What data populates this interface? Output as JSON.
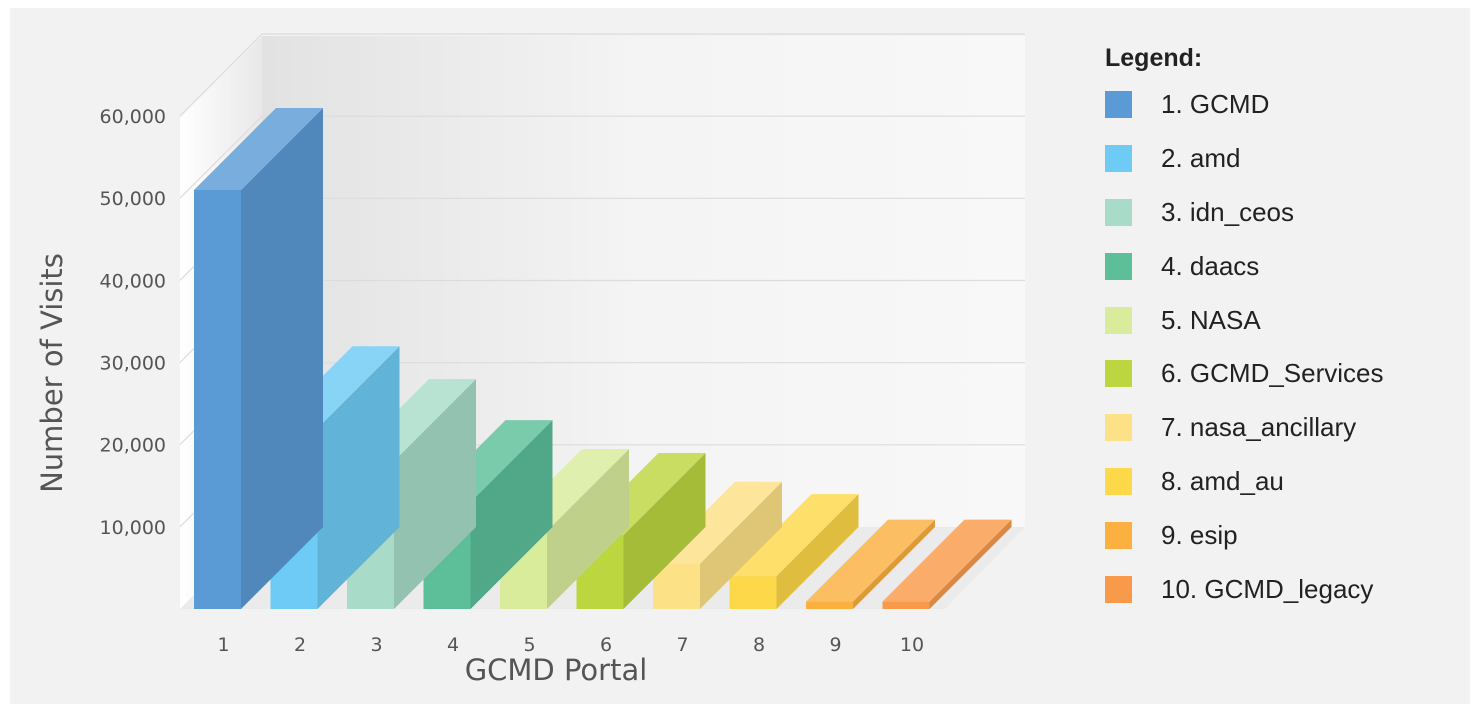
{
  "chart_data": {
    "type": "bar",
    "style": "3d",
    "xlabel": "GCMD Portal",
    "ylabel": "Number of Visits",
    "categories": [
      "1",
      "2",
      "3",
      "4",
      "5",
      "6",
      "7",
      "8",
      "9",
      "10"
    ],
    "values": [
      51000,
      22000,
      18000,
      13000,
      9500,
      9000,
      5500,
      4000,
      900,
      900
    ],
    "yticks": [
      "10,000",
      "20,000",
      "30,000",
      "40,000",
      "50,000",
      "60,000"
    ],
    "ylim": [
      0,
      60000
    ],
    "grid": true,
    "legend_position": "right",
    "series": [
      {
        "name": "1. GCMD",
        "color": "#5b9bd5"
      },
      {
        "name": "2. amd",
        "color": "#6ecbf5"
      },
      {
        "name": "3. idn_ceos",
        "color": "#a8dcc8"
      },
      {
        "name": "4. daacs",
        "color": "#5cbf9a"
      },
      {
        "name": "5. NASA",
        "color": "#d8ec9c"
      },
      {
        "name": "6. GCMD_Services",
        "color": "#bcd640"
      },
      {
        "name": "7. nasa_ancillary",
        "color": "#fde186"
      },
      {
        "name": "8. amd_au",
        "color": "#fdd848"
      },
      {
        "name": "9. esip",
        "color": "#fbb040"
      },
      {
        "name": "10. GCMD_legacy",
        "color": "#f99a4a"
      }
    ]
  },
  "legend": {
    "title": "Legend:"
  }
}
